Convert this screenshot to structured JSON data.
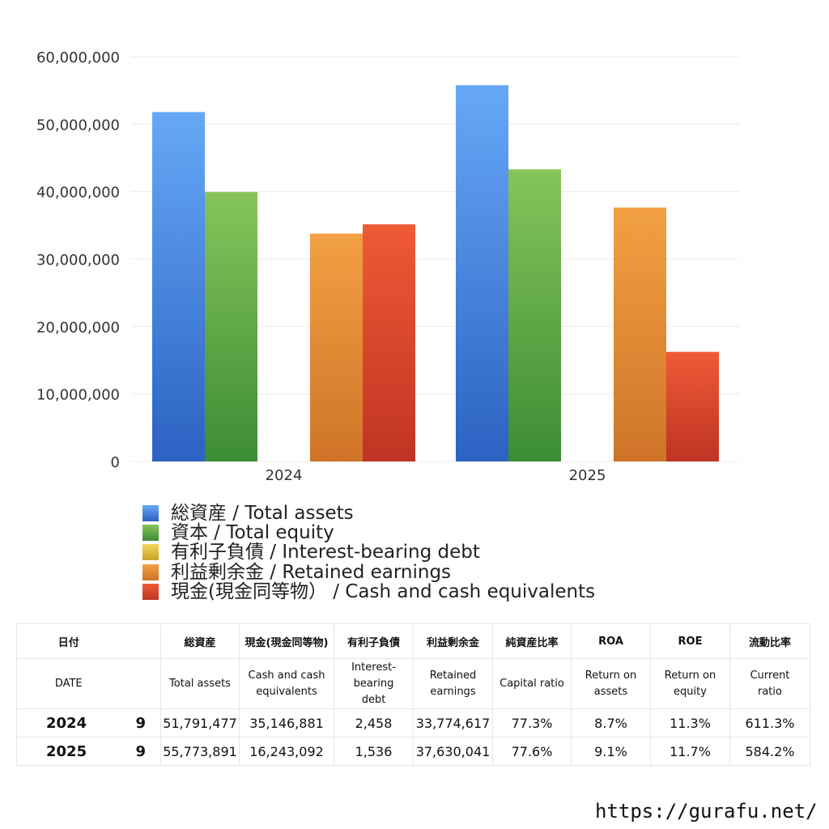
{
  "chart_data": {
    "type": "bar",
    "categories": [
      "2024",
      "2025"
    ],
    "ylim": [
      0,
      60000000
    ],
    "yticks": [
      "0",
      "10,000,000",
      "20,000,000",
      "30,000,000",
      "40,000,000",
      "50,000,000",
      "60,000,000"
    ],
    "grid": true,
    "legend_position": "bottom",
    "series": [
      {
        "name": "総資産 / Total assets",
        "values": [
          51791477,
          55773891
        ],
        "color_top": "#66a8f6",
        "color_bottom": "#2c62c2"
      },
      {
        "name": "資本 / Total equity",
        "values": [
          39940000,
          43300000
        ],
        "color_top": "#86c45a",
        "color_bottom": "#3c8d35"
      },
      {
        "name": "有利子負債 / Interest-bearing debt",
        "values": [
          2458,
          1536
        ],
        "color_top": "#f2d65a",
        "color_bottom": "#c9a228"
      },
      {
        "name": "利益剰余金 / Retained earnings",
        "values": [
          33774617,
          37630041
        ],
        "color_top": "#f2a043",
        "color_bottom": "#cf7428"
      },
      {
        "name": "現金(現金同等物） /  Cash and cash equivalents",
        "values": [
          35146881,
          16243092
        ],
        "color_top": "#ef5a36",
        "color_bottom": "#bf3423"
      }
    ]
  },
  "table": {
    "header_jp": [
      "日付",
      "",
      "総資産",
      "現金(現金同等物)",
      "有利子負債",
      "利益剰余金",
      "純資産比率",
      "ROA",
      "ROE",
      "流動比率"
    ],
    "header_en": [
      "DATE",
      "",
      "Total assets",
      "Cash and cash\nequivalents",
      "Interest-\nbearing\ndebt",
      "Retained\nearnings",
      "Capital ratio",
      "Return on\nassets",
      "Return on\nequity",
      "Current\nratio"
    ],
    "rows": [
      [
        "2024",
        "9",
        "51,791,477",
        "35,146,881",
        "2,458",
        "33,774,617",
        "77.3%",
        "8.7%",
        "11.3%",
        "611.3%"
      ],
      [
        "2025",
        "9",
        "55,773,891",
        "16,243,092",
        "1,536",
        "37,630,041",
        "77.6%",
        "9.1%",
        "11.7%",
        "584.2%"
      ]
    ]
  },
  "footer": {
    "url": "https://gurafu.net/"
  }
}
